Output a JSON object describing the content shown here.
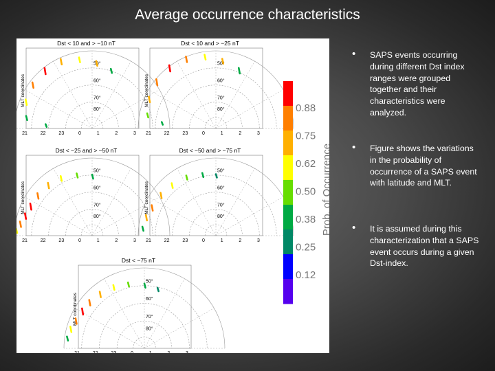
{
  "slide": {
    "title": "Average occurrence characteristics"
  },
  "figure": {
    "mlt_label": "MLT coordinates",
    "lat_labels": [
      "80°",
      "70°",
      "60°",
      "50°"
    ],
    "mlt_ticks": [
      "21",
      "22",
      "23",
      "0",
      "1",
      "2",
      "3"
    ],
    "panels": [
      {
        "title": "Dst < 10 and > −10 nT"
      },
      {
        "title": "Dst < 10 and > −25 nT"
      },
      {
        "title": "Dst < −25 and > −50 nT"
      },
      {
        "title": "Dst < −50 and > −75 nT"
      },
      {
        "title": "Dst < −75 nT"
      }
    ],
    "colorbar": {
      "label": "Prob. of Occurrence",
      "tick_labels": [
        "0.88",
        "0.75",
        "0.62",
        "0.50",
        "0.38",
        "0.25",
        "0.12"
      ],
      "colors": [
        "#ff0000",
        "#ff7f00",
        "#ffb000",
        "#ffff00",
        "#66dd00",
        "#00aa44",
        "#008866",
        "#0000ff",
        "#5500ee"
      ]
    }
  },
  "bullets": [
    {
      "text": "SAPS events occurring during different Dst index ranges were grouped together and their characteristics were analyzed."
    },
    {
      "text": "Figure shows the variations in the probability of occurrence of a SAPS event with latitude and MLT."
    },
    {
      "text": "It is assumed during this characterization that a SAPS event occurs during a given Dst-index."
    }
  ]
}
